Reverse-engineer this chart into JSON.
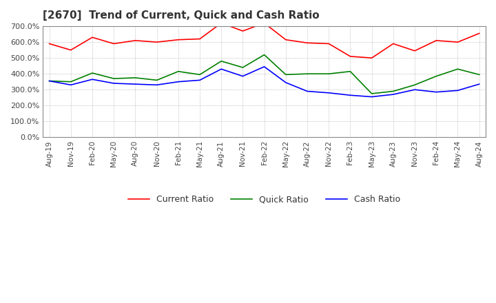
{
  "title": "[2670]  Trend of Current, Quick and Cash Ratio",
  "ylim": [
    0,
    700
  ],
  "yticks": [
    0,
    100,
    200,
    300,
    400,
    500,
    600,
    700
  ],
  "background_color": "#ffffff",
  "grid_color": "#aaaaaa",
  "x_labels": [
    "Aug-19",
    "Nov-19",
    "Feb-20",
    "May-20",
    "Aug-20",
    "Nov-20",
    "Feb-21",
    "May-21",
    "Aug-21",
    "Nov-21",
    "Feb-22",
    "May-22",
    "Aug-22",
    "Nov-22",
    "Feb-23",
    "May-23",
    "Aug-23",
    "Nov-23",
    "Feb-24",
    "May-24",
    "Aug-24"
  ],
  "current_ratio": [
    590,
    550,
    630,
    590,
    610,
    600,
    615,
    620,
    720,
    670,
    720,
    615,
    595,
    590,
    510,
    500,
    590,
    545,
    610,
    600,
    655
  ],
  "quick_ratio": [
    355,
    350,
    405,
    370,
    375,
    360,
    415,
    395,
    480,
    440,
    520,
    395,
    400,
    400,
    415,
    275,
    290,
    330,
    385,
    430,
    395
  ],
  "cash_ratio": [
    355,
    330,
    365,
    340,
    335,
    330,
    350,
    360,
    430,
    385,
    445,
    345,
    290,
    280,
    265,
    255,
    270,
    300,
    285,
    295,
    335
  ],
  "current_color": "#ff0000",
  "quick_color": "#008000",
  "cash_color": "#0000ff",
  "legend_labels": [
    "Current Ratio",
    "Quick Ratio",
    "Cash Ratio"
  ]
}
